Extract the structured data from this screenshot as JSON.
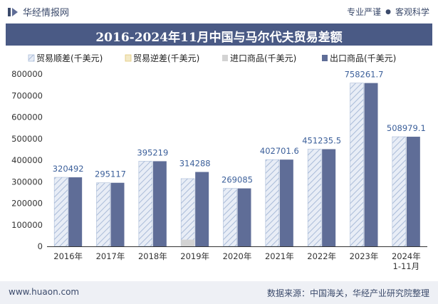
{
  "header": {
    "brand": "华经情报网",
    "tag_left": "专业严谨",
    "tag_right": "客观科学"
  },
  "title": "2016-2024年11月中国与马尔代夫贸易差额",
  "footer": {
    "website": "www.huaon.com",
    "source": "数据来源：中国海关，华经产业研究院整理"
  },
  "colors": {
    "surplus": "#dfe6f2",
    "surplus_hatch": "#a9bbd8",
    "deficit": "#f3e9c6",
    "import": "#d3d3d3",
    "export": "#5f6d97",
    "title_bg": "#4a5a85",
    "label": "#3b5f9a"
  },
  "chart_data": {
    "type": "bar",
    "categories": [
      "2016年",
      "2017年",
      "2018年",
      "2019年",
      "2020年",
      "2021年",
      "2022年",
      "2023年",
      "2024年\n1-11月"
    ],
    "series": [
      {
        "name": "贸易顺差(千美元)",
        "values": [
          320492,
          295117,
          395219,
          314288,
          269085,
          402701.6,
          451235.5,
          758261.7,
          508979.1
        ]
      },
      {
        "name": "贸易逆差(千美元)",
        "values": [
          0,
          0,
          0,
          0,
          0,
          0,
          0,
          0,
          0
        ]
      },
      {
        "name": "进口商品(千美元)",
        "values": [
          0,
          0,
          0,
          31000,
          0,
          0,
          0,
          0,
          0
        ]
      },
      {
        "name": "出口商品(千美元)",
        "values": [
          320492,
          295117,
          395219,
          345288,
          269085,
          402701.6,
          451235.5,
          758261.7,
          508979.1
        ]
      }
    ],
    "data_labels": [
      "320492",
      "295117",
      "395219",
      "314288",
      "269085",
      "402701.6",
      "451235.5",
      "758261.7",
      "508979.1"
    ],
    "ylim": [
      0,
      800000
    ],
    "yticks": [
      0,
      100000,
      200000,
      300000,
      400000,
      500000,
      600000,
      700000,
      800000
    ],
    "legend_position": "top",
    "grid": false
  }
}
